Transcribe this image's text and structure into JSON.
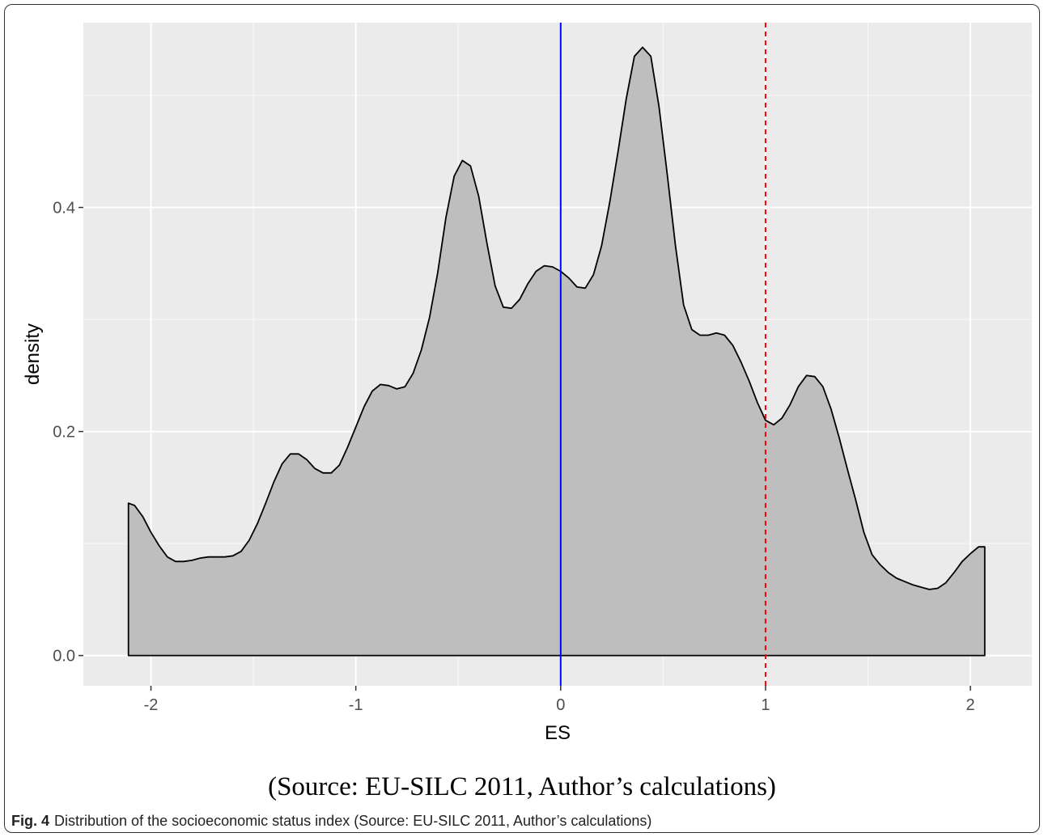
{
  "chart_data": {
    "type": "area",
    "xlabel": "ES",
    "ylabel": "density",
    "xlim": [
      -2.33,
      2.3
    ],
    "ylim": [
      -0.027,
      0.565
    ],
    "x_ticks": [
      -2,
      -1,
      0,
      1,
      2
    ],
    "x_tick_labels": [
      "-2",
      "-1",
      "0",
      "1",
      "2"
    ],
    "y_ticks": [
      0.0,
      0.2,
      0.4
    ],
    "y_tick_labels": [
      "0.0",
      "0.2",
      "0.4"
    ],
    "grid": true,
    "fill_color": "#bebebe",
    "panel_color": "#ebebeb",
    "vlines": [
      {
        "x": 0,
        "color": "#0000ff",
        "style": "solid"
      },
      {
        "x": 1,
        "color": "#ff0000",
        "style": "dashed"
      }
    ],
    "x": [
      -2.11,
      -2.08,
      -2.04,
      -2.0,
      -1.96,
      -1.92,
      -1.88,
      -1.84,
      -1.8,
      -1.76,
      -1.72,
      -1.68,
      -1.64,
      -1.6,
      -1.56,
      -1.52,
      -1.48,
      -1.44,
      -1.4,
      -1.36,
      -1.32,
      -1.28,
      -1.24,
      -1.2,
      -1.16,
      -1.12,
      -1.08,
      -1.04,
      -1.0,
      -0.96,
      -0.92,
      -0.88,
      -0.84,
      -0.8,
      -0.76,
      -0.72,
      -0.68,
      -0.64,
      -0.6,
      -0.56,
      -0.52,
      -0.48,
      -0.44,
      -0.4,
      -0.36,
      -0.32,
      -0.28,
      -0.24,
      -0.2,
      -0.16,
      -0.12,
      -0.08,
      -0.04,
      0.0,
      0.04,
      0.08,
      0.12,
      0.16,
      0.2,
      0.24,
      0.28,
      0.32,
      0.36,
      0.4,
      0.44,
      0.48,
      0.52,
      0.56,
      0.6,
      0.64,
      0.68,
      0.72,
      0.76,
      0.8,
      0.84,
      0.88,
      0.92,
      0.96,
      1.0,
      1.04,
      1.08,
      1.12,
      1.16,
      1.2,
      1.24,
      1.28,
      1.32,
      1.36,
      1.4,
      1.44,
      1.48,
      1.52,
      1.56,
      1.6,
      1.64,
      1.68,
      1.72,
      1.76,
      1.8,
      1.84,
      1.88,
      1.92,
      1.96,
      2.0,
      2.04,
      2.07
    ],
    "y": [
      0.136,
      0.134,
      0.124,
      0.11,
      0.098,
      0.088,
      0.084,
      0.084,
      0.085,
      0.087,
      0.088,
      0.088,
      0.088,
      0.089,
      0.093,
      0.103,
      0.118,
      0.136,
      0.155,
      0.171,
      0.18,
      0.18,
      0.175,
      0.167,
      0.163,
      0.163,
      0.17,
      0.186,
      0.204,
      0.222,
      0.236,
      0.242,
      0.241,
      0.238,
      0.24,
      0.252,
      0.273,
      0.302,
      0.342,
      0.391,
      0.428,
      0.442,
      0.437,
      0.41,
      0.368,
      0.33,
      0.311,
      0.31,
      0.318,
      0.332,
      0.343,
      0.348,
      0.347,
      0.343,
      0.337,
      0.329,
      0.328,
      0.34,
      0.366,
      0.405,
      0.45,
      0.497,
      0.535,
      0.543,
      0.535,
      0.49,
      0.43,
      0.366,
      0.313,
      0.291,
      0.286,
      0.286,
      0.288,
      0.286,
      0.277,
      0.262,
      0.245,
      0.226,
      0.21,
      0.206,
      0.212,
      0.224,
      0.24,
      0.25,
      0.249,
      0.24,
      0.22,
      0.194,
      0.166,
      0.139,
      0.11,
      0.09,
      0.081,
      0.074,
      0.069,
      0.066,
      0.063,
      0.061,
      0.059,
      0.06,
      0.065,
      0.074,
      0.084,
      0.091,
      0.097,
      0.097
    ]
  },
  "source_note": "(Source: EU-SILC 2011, Author’s calculations)",
  "caption": {
    "label": "Fig. 4",
    "text": "Distribution of the socioeconomic status index (Source: EU-SILC 2011, Author’s calculations)"
  }
}
